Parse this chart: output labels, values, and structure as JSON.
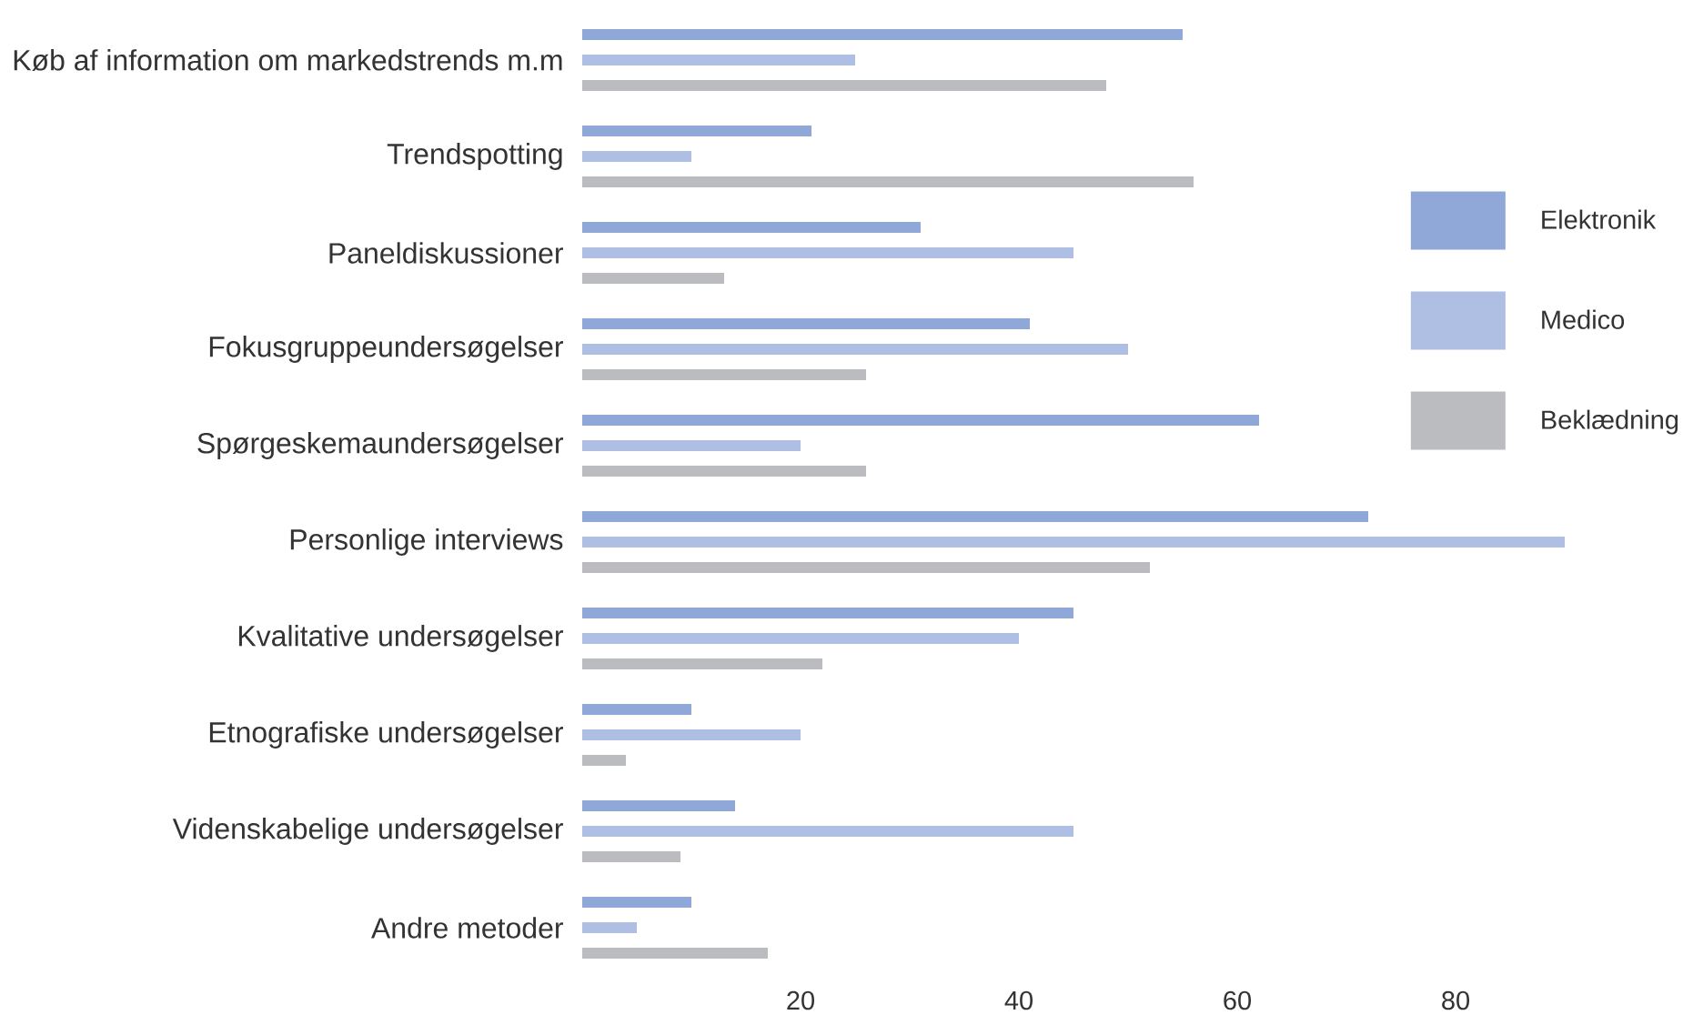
{
  "chart_data": {
    "type": "bar",
    "orientation": "horizontal",
    "categories": [
      "Køb af information om markedstrends m.m",
      "Trendspotting",
      "Paneldiskussioner",
      "Fokusgruppeundersøgelser",
      "Spørgeskemaundersøgelser",
      "Personlige interviews",
      "Kvalitative undersøgelser",
      "Etnografiske undersøgelser",
      "Videnskabelige undersøgelser",
      "Andre metoder"
    ],
    "series": [
      {
        "name": "Elektronik",
        "color": "#8fa8d8",
        "values": [
          55,
          21,
          31,
          41,
          62,
          72,
          45,
          10,
          14,
          10
        ]
      },
      {
        "name": "Medico",
        "color": "#afbee3",
        "values": [
          25,
          10,
          45,
          50,
          20,
          90,
          40,
          20,
          45,
          5
        ]
      },
      {
        "name": "Beklædning",
        "color": "#bbbcc0",
        "values": [
          48,
          56,
          13,
          26,
          26,
          52,
          22,
          4,
          9,
          17
        ]
      }
    ],
    "xlim": [
      0,
      90
    ],
    "xticks": [
      20,
      40,
      60,
      80
    ],
    "legend": "right"
  }
}
